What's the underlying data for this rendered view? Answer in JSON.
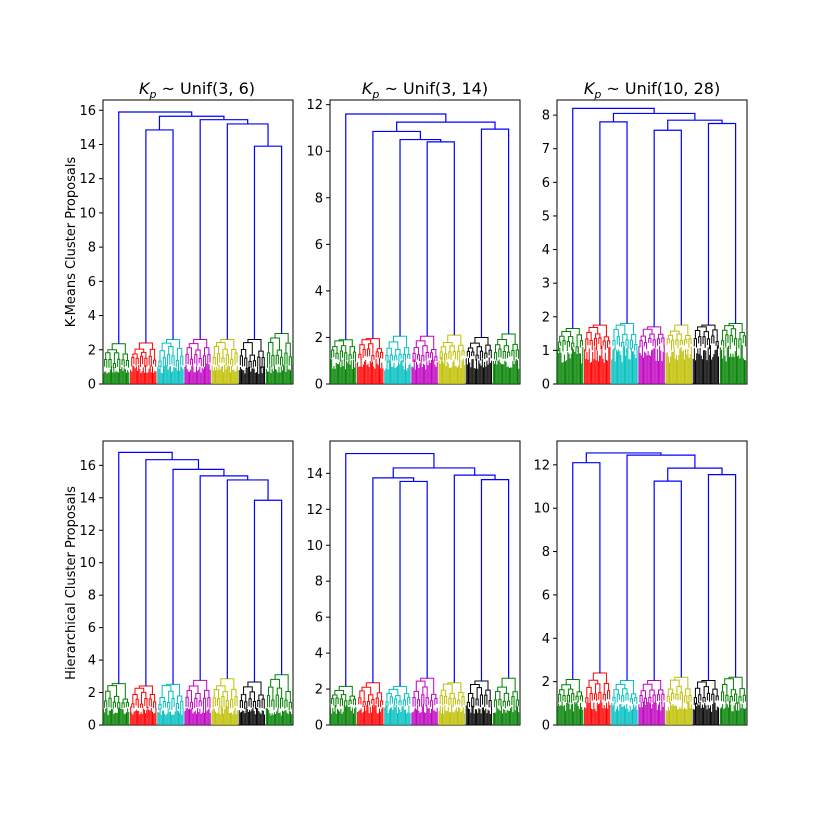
{
  "figure": {
    "row_labels": [
      "K-Means Cluster Proposals",
      "Hierarchical Cluster Proposals"
    ],
    "column_titles": [
      {
        "base": "K",
        "sub": "p",
        "rest": " ~ Unif(3, 6)"
      },
      {
        "base": "K",
        "sub": "p",
        "rest": " ~ Unif(3, 14)"
      },
      {
        "base": "K",
        "sub": "p",
        "rest": " ~ Unif(10, 28)"
      }
    ]
  },
  "chart_data": [
    {
      "type": "dendrogram",
      "row": 0,
      "col": 0,
      "ylim": [
        0,
        16.6
      ],
      "yticks": [
        "0",
        "2",
        "4",
        "6",
        "8",
        "10",
        "12",
        "14",
        "16"
      ],
      "leaf_colors": [
        "#008000",
        "#ff0000",
        "#00bfbf",
        "#bf00bf",
        "#bfbf00",
        "#000000",
        "#008000"
      ],
      "leaf_cluster_heights": [
        2.35,
        2.4,
        2.6,
        2.6,
        2.6,
        2.6,
        2.95
      ],
      "merges": [
        {
          "left": 5,
          "right": 6,
          "height": 13.9
        },
        {
          "left": 4,
          "right": "m0",
          "height": 15.2
        },
        {
          "left": 3,
          "right": "m1",
          "height": 15.45
        },
        {
          "left": 1,
          "right": 2,
          "height": 14.85
        },
        {
          "left": "m3",
          "right": "m2",
          "height": 15.65
        },
        {
          "left": 0,
          "right": "m4",
          "height": 15.9
        }
      ],
      "grid": false
    },
    {
      "type": "dendrogram",
      "row": 0,
      "col": 1,
      "ylim": [
        0,
        12.2
      ],
      "yticks": [
        "0",
        "2",
        "4",
        "6",
        "8",
        "10",
        "12"
      ],
      "leaf_colors": [
        "#008000",
        "#ff0000",
        "#00bfbf",
        "#bf00bf",
        "#bfbf00",
        "#000000",
        "#008000"
      ],
      "leaf_cluster_heights": [
        1.9,
        1.95,
        2.05,
        2.05,
        2.1,
        2.0,
        2.15
      ],
      "merges": [
        {
          "left": 5,
          "right": 6,
          "height": 10.95
        },
        {
          "left": 3,
          "right": 4,
          "height": 10.4
        },
        {
          "left": 2,
          "right": "m1",
          "height": 10.5
        },
        {
          "left": 1,
          "right": "m2",
          "height": 10.85
        },
        {
          "left": "m3",
          "right": "m0",
          "height": 11.25
        },
        {
          "left": 0,
          "right": "m4",
          "height": 11.6
        }
      ],
      "grid": false
    },
    {
      "type": "dendrogram",
      "row": 0,
      "col": 2,
      "ylim": [
        0,
        8.45
      ],
      "yticks": [
        "0",
        "1",
        "2",
        "3",
        "4",
        "5",
        "6",
        "7",
        "8"
      ],
      "leaf_colors": [
        "#008000",
        "#ff0000",
        "#00bfbf",
        "#bf00bf",
        "#bfbf00",
        "#000000",
        "#008000"
      ],
      "leaf_cluster_heights": [
        1.65,
        1.75,
        1.8,
        1.7,
        1.75,
        1.75,
        1.8
      ],
      "merges": [
        {
          "left": 1,
          "right": 2,
          "height": 7.8
        },
        {
          "left": 3,
          "right": 4,
          "height": 7.55
        },
        {
          "left": 5,
          "right": 6,
          "height": 7.75
        },
        {
          "left": "m1",
          "right": "m2",
          "height": 7.85
        },
        {
          "left": "m0",
          "right": "m3",
          "height": 8.05
        },
        {
          "left": 0,
          "right": "m4",
          "height": 8.2
        }
      ],
      "grid": false
    },
    {
      "type": "dendrogram",
      "row": 1,
      "col": 0,
      "ylim": [
        0,
        17.5
      ],
      "yticks": [
        "0",
        "2",
        "4",
        "6",
        "8",
        "10",
        "12",
        "14",
        "16"
      ],
      "leaf_colors": [
        "#008000",
        "#ff0000",
        "#00bfbf",
        "#bf00bf",
        "#bfbf00",
        "#000000",
        "#008000"
      ],
      "leaf_cluster_heights": [
        2.55,
        2.4,
        2.5,
        2.75,
        2.85,
        2.65,
        3.1
      ],
      "merges": [
        {
          "left": 5,
          "right": 6,
          "height": 13.85
        },
        {
          "left": 4,
          "right": "m0",
          "height": 15.1
        },
        {
          "left": 3,
          "right": "m1",
          "height": 15.35
        },
        {
          "left": 2,
          "right": "m2",
          "height": 15.75
        },
        {
          "left": 1,
          "right": "m3",
          "height": 16.35
        },
        {
          "left": 0,
          "right": "m4",
          "height": 16.8
        }
      ],
      "grid": false
    },
    {
      "type": "dendrogram",
      "row": 1,
      "col": 1,
      "ylim": [
        0,
        15.8
      ],
      "yticks": [
        "0",
        "2",
        "4",
        "6",
        "8",
        "10",
        "12",
        "14"
      ],
      "leaf_colors": [
        "#008000",
        "#ff0000",
        "#00bfbf",
        "#bf00bf",
        "#bfbf00",
        "#000000",
        "#008000"
      ],
      "leaf_cluster_heights": [
        2.15,
        2.35,
        2.15,
        2.6,
        2.35,
        2.45,
        2.6
      ],
      "merges": [
        {
          "left": 2,
          "right": 3,
          "height": 13.55
        },
        {
          "left": 1,
          "right": "m0",
          "height": 13.75
        },
        {
          "left": 5,
          "right": 6,
          "height": 13.65
        },
        {
          "left": 4,
          "right": "m2",
          "height": 13.9
        },
        {
          "left": "m1",
          "right": "m3",
          "height": 14.3
        },
        {
          "left": 0,
          "right": "m4",
          "height": 15.1
        }
      ],
      "grid": false
    },
    {
      "type": "dendrogram",
      "row": 1,
      "col": 2,
      "ylim": [
        0,
        13.1
      ],
      "yticks": [
        "0",
        "2",
        "4",
        "6",
        "8",
        "10",
        "12"
      ],
      "leaf_colors": [
        "#008000",
        "#ff0000",
        "#00bfbf",
        "#bf00bf",
        "#bfbf00",
        "#000000",
        "#008000"
      ],
      "leaf_cluster_heights": [
        2.1,
        2.4,
        2.05,
        2.05,
        2.2,
        2.05,
        2.2
      ],
      "merges": [
        {
          "left": 0,
          "right": 1,
          "height": 12.1
        },
        {
          "left": 3,
          "right": 4,
          "height": 11.25
        },
        {
          "left": 5,
          "right": 6,
          "height": 11.55
        },
        {
          "left": "m1",
          "right": "m2",
          "height": 11.85
        },
        {
          "left": 2,
          "right": "m3",
          "height": 12.45
        },
        {
          "left": "m0",
          "right": "m4",
          "height": 12.55
        }
      ],
      "grid": false
    }
  ]
}
